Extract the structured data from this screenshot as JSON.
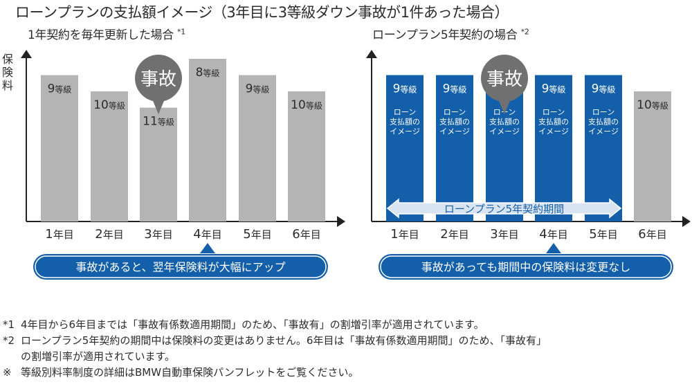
{
  "title": "ローンプランの支払額イメージ（3年目に3等級ダウン事故が1件あった場合）",
  "charts": [
    {
      "subtitle": "1年契約を毎年更新した場合",
      "footnote_mark": "*1",
      "ylabel": "保険料",
      "accident_label": "事故",
      "accident_year_index": 2,
      "note_arrow_year_index": 3,
      "note": "事故があると、翌年保険料が大幅にアップ"
    },
    {
      "subtitle": "ローンプラン5年契約の場合",
      "footnote_mark": "*2",
      "accident_label": "事故",
      "accident_year_index": 2,
      "note_arrow_year_index": 3,
      "period_label": "ローンプラン5年契約期間",
      "note": "事故があっても期間中の保険料は変更なし"
    }
  ],
  "chart_data": [
    {
      "type": "bar",
      "title": "1年契約を毎年更新した場合",
      "categories": [
        "1年目",
        "2年目",
        "3年目",
        "4年目",
        "5年目",
        "6年目"
      ],
      "values": [
        9,
        10,
        11,
        8,
        9,
        10
      ],
      "labels": [
        "9等級",
        "10等級",
        "11等級",
        "8等級",
        "9等級",
        "10等級"
      ],
      "ylabel": "保険料",
      "color": "#b4b4b4"
    },
    {
      "type": "bar",
      "title": "ローンプラン5年契約の場合",
      "categories": [
        "1年目",
        "2年目",
        "3年目",
        "4年目",
        "5年目",
        "6年目"
      ],
      "values": [
        9,
        9,
        9,
        9,
        9,
        10
      ],
      "labels": [
        "9等級",
        "9等級",
        "9等級",
        "9等級",
        "9等級",
        "10等級"
      ],
      "inner_labels": [
        "ローン",
        "支払額の",
        "イメージ"
      ],
      "loan_plan_years": [
        1,
        2,
        3,
        4,
        5
      ],
      "colors": {
        "loan_plan": "#135faa",
        "normal": "#b4b4b4"
      }
    }
  ],
  "footnotes": [
    {
      "mark": "*1",
      "text": "4年目から6年目までは「事故有係数適用期間」のため、「事故有」の割増引率が適用されています。"
    },
    {
      "mark": "*2",
      "text": "ローンプラン5年契約の期間中は保険料の変更はありません。6年目は「事故有係数適用期間」のため、「事故有」"
    },
    {
      "mark": "",
      "text": "の割増引率が適用されています。"
    },
    {
      "mark": "※",
      "text": "等級別料率制度の詳細はBMW自動車保険パンフレットをご覧ください。"
    }
  ],
  "colors": {
    "gray_bar": "#b4b4b4",
    "blue": "#135faa",
    "bubble": "#707070",
    "axis": "#222222"
  }
}
